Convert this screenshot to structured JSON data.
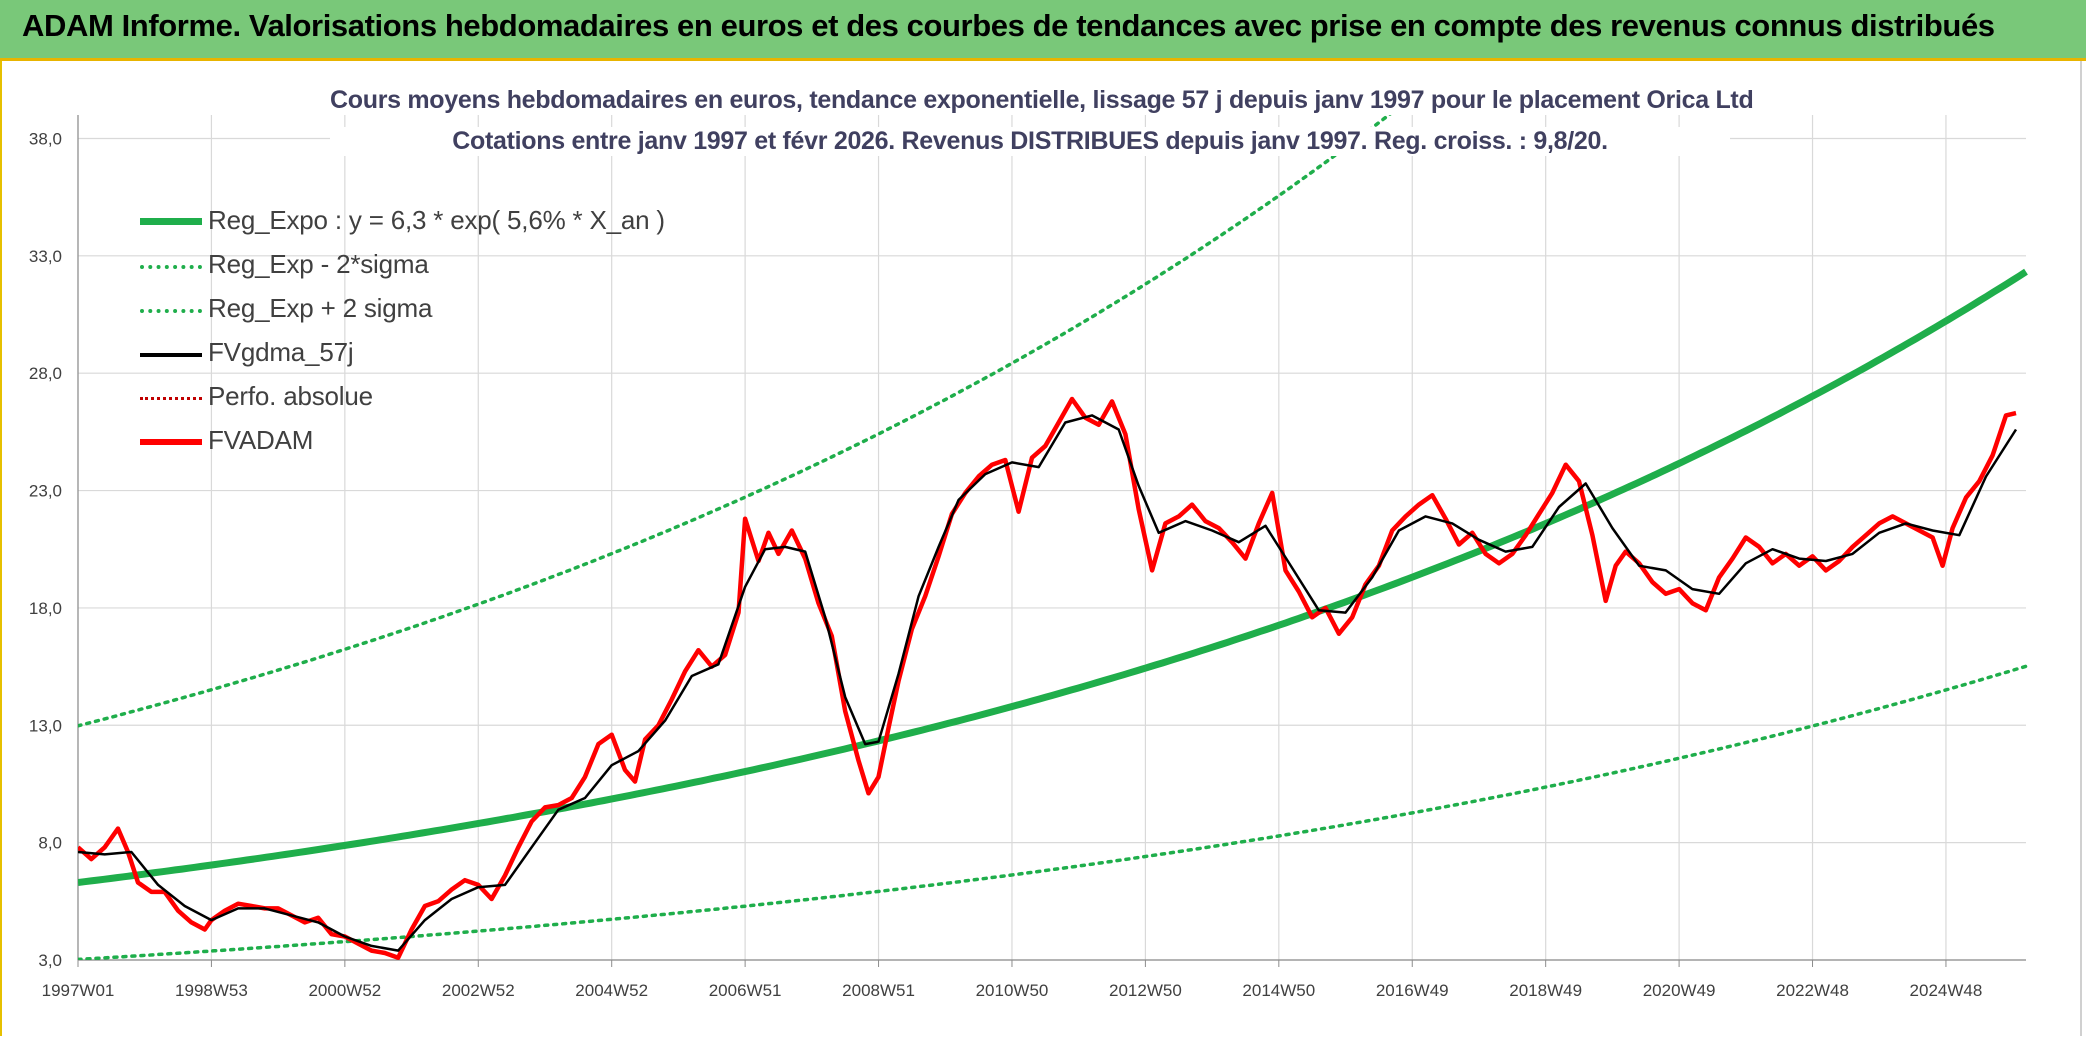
{
  "header": {
    "title": "ADAM Informe. Valorisations hebdomadaires en euros et des courbes de tendances avec prise en compte des revenus connus distribués"
  },
  "colors": {
    "banner": "#79c879",
    "reg_expo": "#1fae4b",
    "band": "#1fae4b",
    "fvgdma": "#000000",
    "fvadam": "#ff0000",
    "perfo": "#c00000"
  },
  "chart_data": {
    "type": "line",
    "title": [
      "Cours moyens hebdomadaires en euros, tendance exponentielle, lissage 57 j depuis janv 1997 pour le placement Orica Ltd",
      "Cotations entre janv 1997 et févr 2026. Revenus DISTRIBUES depuis janv 1997. Reg. croiss. : 9,8/20."
    ],
    "xlabel": "",
    "ylabel": "",
    "xlim": [
      1997.0,
      2026.2
    ],
    "ylim": [
      3.0,
      39.0
    ],
    "y_ticks": [
      "3,0",
      "8,0",
      "13,0",
      "18,0",
      "23,0",
      "28,0",
      "33,0",
      "38,0"
    ],
    "y_tick_values": [
      3,
      8,
      13,
      18,
      23,
      28,
      33,
      38
    ],
    "x_ticks": [
      "1997W01",
      "1998W53",
      "2000W52",
      "2002W52",
      "2004W52",
      "2006W51",
      "2008W51",
      "2010W50",
      "2012W50",
      "2014W50",
      "2016W49",
      "2018W49",
      "2020W49",
      "2022W48",
      "2024W48"
    ],
    "x_tick_values": [
      1997.0,
      1999.0,
      2001.0,
      2003.0,
      2005.0,
      2007.0,
      2009.0,
      2011.0,
      2013.0,
      2015.0,
      2017.0,
      2019.0,
      2021.0,
      2023.0,
      2025.0
    ],
    "legend": [
      {
        "key": "reg_expo",
        "label": "Reg_Expo : y = 6,3 * exp( 5,6% *  X_an )",
        "style": "solid-thick",
        "color": "#1fae4b"
      },
      {
        "key": "reg_minus",
        "label": "Reg_Exp - 2*sigma",
        "style": "dotted",
        "color": "#1fae4b"
      },
      {
        "key": "reg_plus",
        "label": "Reg_Exp + 2 sigma",
        "style": "dotted",
        "color": "#1fae4b"
      },
      {
        "key": "fvgdma",
        "label": "FVgdma_57j",
        "style": "solid",
        "color": "#000000"
      },
      {
        "key": "perfo",
        "label": "Perfo. absolue",
        "style": "dotted",
        "color": "#c00000"
      },
      {
        "key": "fvadam",
        "label": "FVADAM",
        "style": "solid-thick",
        "color": "#ff0000"
      }
    ],
    "regression": {
      "base": 6.3,
      "rate": 0.056,
      "band_minus_factor": 0.48,
      "band_plus_factor": 2.06
    },
    "series": [
      {
        "name": "FVADAM",
        "x": [
          1997.0,
          1997.2,
          1997.4,
          1997.6,
          1997.75,
          1997.9,
          1998.1,
          1998.3,
          1998.5,
          1998.7,
          1998.9,
          1999.0,
          1999.2,
          1999.4,
          1999.6,
          1999.8,
          2000.0,
          2000.2,
          2000.4,
          2000.6,
          2000.8,
          2001.0,
          2001.2,
          2001.4,
          2001.6,
          2001.8,
          2002.0,
          2002.2,
          2002.4,
          2002.6,
          2002.8,
          2003.0,
          2003.2,
          2003.4,
          2003.6,
          2003.8,
          2004.0,
          2004.2,
          2004.4,
          2004.6,
          2004.8,
          2005.0,
          2005.2,
          2005.35,
          2005.5,
          2005.7,
          2005.9,
          2006.1,
          2006.3,
          2006.5,
          2006.7,
          2006.9,
          2007.0,
          2007.2,
          2007.35,
          2007.5,
          2007.7,
          2007.9,
          2008.1,
          2008.3,
          2008.5,
          2008.7,
          2008.85,
          2009.0,
          2009.15,
          2009.3,
          2009.5,
          2009.7,
          2009.9,
          2010.1,
          2010.3,
          2010.5,
          2010.7,
          2010.9,
          2011.1,
          2011.3,
          2011.5,
          2011.7,
          2011.9,
          2012.1,
          2012.3,
          2012.5,
          2012.7,
          2012.9,
          2013.1,
          2013.3,
          2013.5,
          2013.7,
          2013.9,
          2014.1,
          2014.3,
          2014.5,
          2014.7,
          2014.9,
          2015.1,
          2015.3,
          2015.5,
          2015.7,
          2015.9,
          2016.1,
          2016.3,
          2016.5,
          2016.7,
          2016.9,
          2017.1,
          2017.3,
          2017.5,
          2017.7,
          2017.9,
          2018.1,
          2018.3,
          2018.5,
          2018.7,
          2018.9,
          2019.1,
          2019.3,
          2019.5,
          2019.7,
          2019.9,
          2020.05,
          2020.2,
          2020.4,
          2020.6,
          2020.8,
          2021.0,
          2021.2,
          2021.4,
          2021.6,
          2021.8,
          2022.0,
          2022.2,
          2022.4,
          2022.6,
          2022.8,
          2023.0,
          2023.2,
          2023.4,
          2023.6,
          2023.8,
          2024.0,
          2024.2,
          2024.4,
          2024.6,
          2024.8,
          2024.95,
          2025.1,
          2025.3,
          2025.5,
          2025.7,
          2025.9,
          2026.05
        ],
        "values": [
          7.8,
          7.3,
          7.8,
          8.6,
          7.6,
          6.3,
          5.9,
          5.9,
          5.1,
          4.6,
          4.3,
          4.7,
          5.1,
          5.4,
          5.3,
          5.2,
          5.2,
          4.9,
          4.6,
          4.8,
          4.1,
          4.0,
          3.7,
          3.4,
          3.3,
          3.1,
          4.3,
          5.3,
          5.5,
          6.0,
          6.4,
          6.2,
          5.6,
          6.6,
          7.8,
          8.9,
          9.5,
          9.6,
          9.9,
          10.8,
          12.2,
          12.6,
          11.1,
          10.6,
          12.4,
          13.0,
          14.1,
          15.3,
          16.2,
          15.5,
          16.0,
          17.8,
          21.8,
          20.0,
          21.2,
          20.3,
          21.3,
          20.1,
          18.2,
          16.8,
          13.6,
          11.5,
          10.1,
          10.8,
          12.9,
          14.9,
          17.1,
          18.5,
          20.2,
          22.0,
          22.9,
          23.6,
          24.1,
          24.3,
          22.1,
          24.4,
          24.9,
          25.9,
          26.9,
          26.1,
          25.8,
          26.8,
          25.4,
          22.2,
          19.6,
          21.6,
          21.9,
          22.4,
          21.7,
          21.4,
          20.8,
          20.1,
          21.6,
          22.9,
          19.6,
          18.7,
          17.6,
          18.0,
          16.9,
          17.6,
          19.0,
          19.8,
          21.3,
          21.9,
          22.4,
          22.8,
          21.8,
          20.7,
          21.2,
          20.3,
          19.9,
          20.3,
          21.1,
          22.0,
          22.9,
          24.1,
          23.4,
          21.1,
          18.3,
          19.8,
          20.4,
          19.9,
          19.1,
          18.6,
          18.8,
          18.2,
          17.9,
          19.3,
          20.1,
          21.0,
          20.6,
          19.9,
          20.3,
          19.8,
          20.2,
          19.6,
          20.0,
          20.6,
          21.1,
          21.6,
          21.9,
          21.6,
          21.3,
          21.0,
          19.8,
          21.4,
          22.7,
          23.4,
          24.5,
          26.2,
          26.3
        ]
      },
      {
        "name": "FVgdma_57j",
        "x": [
          1997.0,
          1997.4,
          1997.8,
          1998.2,
          1998.6,
          1999.0,
          1999.4,
          1999.8,
          2000.2,
          2000.6,
          2001.0,
          2001.4,
          2001.8,
          2002.2,
          2002.6,
          2003.0,
          2003.4,
          2003.8,
          2004.2,
          2004.6,
          2005.0,
          2005.4,
          2005.8,
          2006.2,
          2006.6,
          2007.0,
          2007.3,
          2007.6,
          2007.9,
          2008.2,
          2008.5,
          2008.8,
          2009.0,
          2009.3,
          2009.6,
          2009.9,
          2010.2,
          2010.6,
          2011.0,
          2011.4,
          2011.8,
          2012.2,
          2012.6,
          2012.9,
          2013.2,
          2013.6,
          2014.0,
          2014.4,
          2014.8,
          2015.2,
          2015.6,
          2016.0,
          2016.4,
          2016.8,
          2017.2,
          2017.6,
          2018.0,
          2018.4,
          2018.8,
          2019.2,
          2019.6,
          2020.0,
          2020.4,
          2020.8,
          2021.2,
          2021.6,
          2022.0,
          2022.4,
          2022.8,
          2023.2,
          2023.6,
          2024.0,
          2024.4,
          2024.8,
          2025.2,
          2025.6,
          2026.05
        ],
        "values": [
          7.6,
          7.5,
          7.6,
          6.2,
          5.3,
          4.7,
          5.2,
          5.2,
          4.9,
          4.6,
          4.0,
          3.6,
          3.4,
          4.7,
          5.6,
          6.1,
          6.2,
          7.8,
          9.4,
          9.9,
          11.3,
          11.9,
          13.2,
          15.1,
          15.6,
          18.9,
          20.5,
          20.6,
          20.4,
          17.6,
          14.2,
          12.2,
          12.3,
          15.2,
          18.5,
          20.6,
          22.6,
          23.7,
          24.2,
          24.0,
          25.9,
          26.2,
          25.6,
          23.2,
          21.2,
          21.7,
          21.3,
          20.8,
          21.5,
          19.7,
          17.9,
          17.8,
          19.3,
          21.3,
          21.9,
          21.6,
          20.9,
          20.4,
          20.6,
          22.3,
          23.3,
          21.4,
          19.8,
          19.6,
          18.8,
          18.6,
          19.9,
          20.5,
          20.1,
          20.0,
          20.3,
          21.2,
          21.6,
          21.3,
          21.1,
          23.6,
          25.6
        ]
      }
    ]
  }
}
